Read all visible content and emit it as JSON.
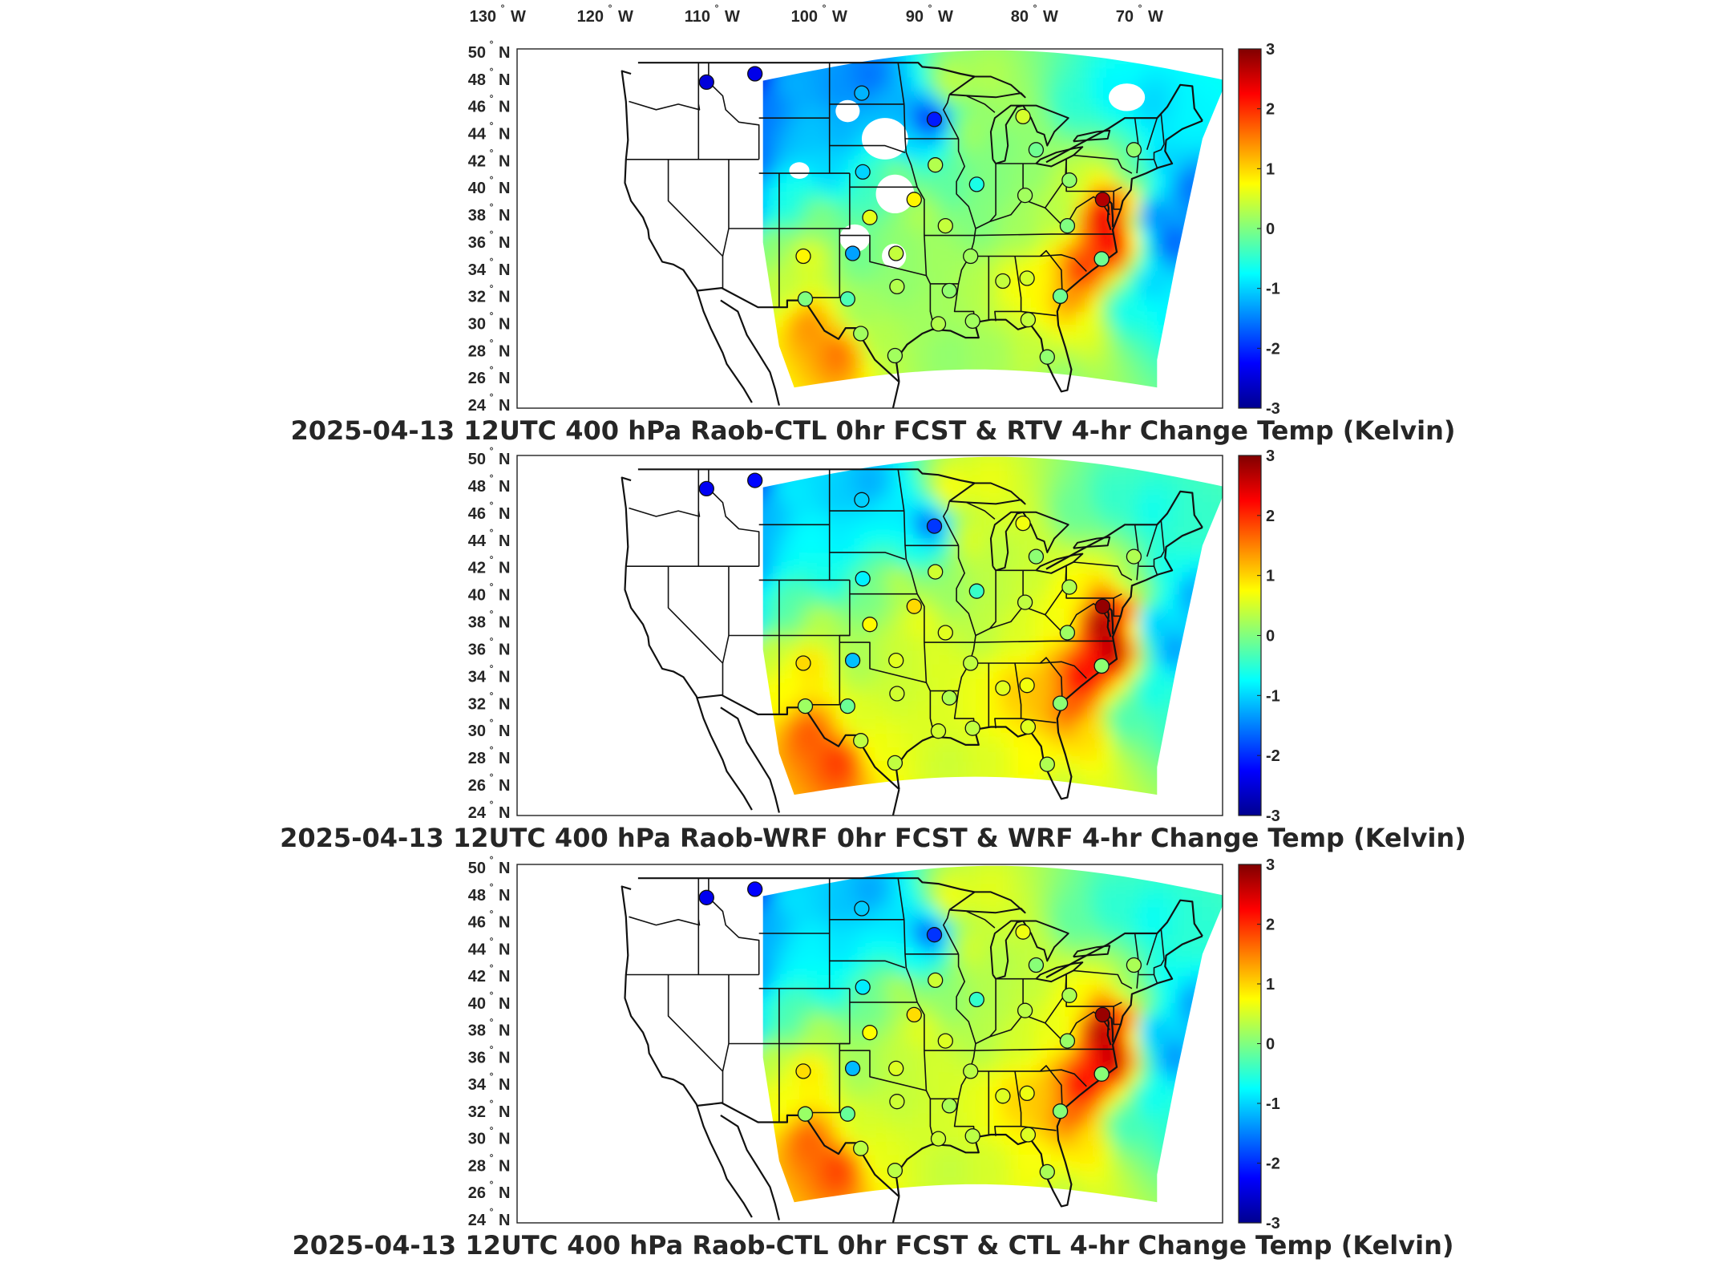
{
  "figure": {
    "top_longitude_labels": [
      {
        "value": "130",
        "deg": "°",
        "hemi": "W"
      },
      {
        "value": "120",
        "deg": "°",
        "hemi": "W"
      },
      {
        "value": "110",
        "deg": "°",
        "hemi": "W"
      },
      {
        "value": "100",
        "deg": "°",
        "hemi": "W"
      },
      {
        "value": "90",
        "deg": "°",
        "hemi": "W"
      },
      {
        "value": "80",
        "deg": "°",
        "hemi": "W"
      },
      {
        "value": "70",
        "deg": "°",
        "hemi": "W"
      }
    ],
    "latitude_labels": [
      {
        "value": "50",
        "deg": "°",
        "hemi": "N"
      },
      {
        "value": "48",
        "deg": "°",
        "hemi": "N"
      },
      {
        "value": "46",
        "deg": "°",
        "hemi": "N"
      },
      {
        "value": "44",
        "deg": "°",
        "hemi": "N"
      },
      {
        "value": "42",
        "deg": "°",
        "hemi": "N"
      },
      {
        "value": "40",
        "deg": "°",
        "hemi": "N"
      },
      {
        "value": "38",
        "deg": "°",
        "hemi": "N"
      },
      {
        "value": "36",
        "deg": "°",
        "hemi": "N"
      },
      {
        "value": "34",
        "deg": "°",
        "hemi": "N"
      },
      {
        "value": "32",
        "deg": "°",
        "hemi": "N"
      },
      {
        "value": "30",
        "deg": "°",
        "hemi": "N"
      },
      {
        "value": "28",
        "deg": "°",
        "hemi": "N"
      },
      {
        "value": "26",
        "deg": "°",
        "hemi": "N"
      },
      {
        "value": "24",
        "deg": "°",
        "hemi": "N"
      }
    ],
    "colorbar_ticks": [
      "3",
      "2",
      "1",
      "0",
      "-1",
      "-2",
      "-3"
    ],
    "colorbar_range": [
      -3,
      3
    ],
    "colormap": [
      "#00008f",
      "#0000ff",
      "#0080ff",
      "#00ffff",
      "#80ff80",
      "#ffff00",
      "#ff8000",
      "#ff0000",
      "#800000"
    ],
    "map_extent": {
      "lon": [
        -135,
        -65
      ],
      "lat": [
        24,
        50
      ]
    },
    "panels": [
      {
        "id": "rtv",
        "title": "2025-04-13 12UTC 400 hPa Raob-CTL 0hr FCST & RTV 4-hr Change Temp (Kelvin)",
        "has_missing_data_gaps": true
      },
      {
        "id": "wrf",
        "title": "2025-04-13 12UTC 400 hPa Raob-WRF 0hr FCST & WRF 4-hr Change Temp (Kelvin)",
        "has_missing_data_gaps": false
      },
      {
        "id": "ctl",
        "title": "2025-04-13 12UTC 400 hPa Raob-CTL 0hr FCST & CTL 4-hr Change Temp (Kelvin)",
        "has_missing_data_gaps": false
      }
    ],
    "raob_stations": [
      {
        "lon": -116.2,
        "lat": 47.6,
        "value": -2.4
      },
      {
        "lon": -111.4,
        "lat": 48.2,
        "value": -2.3
      },
      {
        "lon": -100.8,
        "lat": 46.8,
        "value": -1.1
      },
      {
        "lon": -93.6,
        "lat": 44.9,
        "value": -2.0
      },
      {
        "lon": -84.8,
        "lat": 45.1,
        "value": 0.6
      },
      {
        "lon": -83.5,
        "lat": 42.7,
        "value": 0.0
      },
      {
        "lon": -73.8,
        "lat": 42.7,
        "value": 0.2
      },
      {
        "lon": -93.5,
        "lat": 41.6,
        "value": 0.4
      },
      {
        "lon": -89.4,
        "lat": 40.2,
        "value": -0.5
      },
      {
        "lon": -100.7,
        "lat": 41.1,
        "value": -0.9
      },
      {
        "lon": -84.6,
        "lat": 39.4,
        "value": 0.3
      },
      {
        "lon": -80.2,
        "lat": 40.5,
        "value": 0.2
      },
      {
        "lon": -76.9,
        "lat": 39.1,
        "value": 2.8
      },
      {
        "lon": -95.6,
        "lat": 39.1,
        "value": 0.9
      },
      {
        "lon": -100.0,
        "lat": 37.8,
        "value": 0.7
      },
      {
        "lon": -92.5,
        "lat": 37.2,
        "value": 0.5
      },
      {
        "lon": -80.4,
        "lat": 37.2,
        "value": 0.1
      },
      {
        "lon": -106.6,
        "lat": 35.0,
        "value": 0.9
      },
      {
        "lon": -101.7,
        "lat": 35.2,
        "value": -1.2
      },
      {
        "lon": -97.4,
        "lat": 35.2,
        "value": 0.5
      },
      {
        "lon": -90.0,
        "lat": 35.0,
        "value": 0.3
      },
      {
        "lon": -77.0,
        "lat": 34.8,
        "value": 0.0
      },
      {
        "lon": -106.4,
        "lat": 31.9,
        "value": 0.1
      },
      {
        "lon": -102.2,
        "lat": 31.9,
        "value": -0.2
      },
      {
        "lon": -97.3,
        "lat": 32.8,
        "value": 0.4
      },
      {
        "lon": -92.1,
        "lat": 32.5,
        "value": 0.2
      },
      {
        "lon": -86.8,
        "lat": 33.2,
        "value": 0.5
      },
      {
        "lon": -84.4,
        "lat": 33.4,
        "value": 0.6
      },
      {
        "lon": -81.1,
        "lat": 32.1,
        "value": 0.0
      },
      {
        "lon": -100.9,
        "lat": 29.4,
        "value": 0.3
      },
      {
        "lon": -93.2,
        "lat": 30.1,
        "value": 0.4
      },
      {
        "lon": -89.8,
        "lat": 30.3,
        "value": 0.3
      },
      {
        "lon": -84.3,
        "lat": 30.4,
        "value": 0.5
      },
      {
        "lon": -97.5,
        "lat": 27.8,
        "value": 0.3
      },
      {
        "lon": -82.4,
        "lat": 27.7,
        "value": 0.2
      }
    ]
  }
}
